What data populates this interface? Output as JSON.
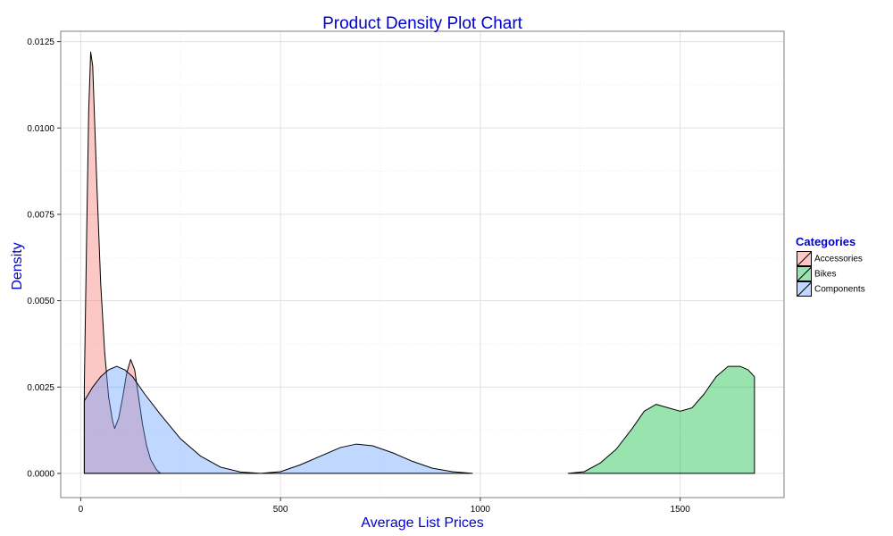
{
  "chart_data": {
    "type": "area",
    "title": "Product Density Plot Chart",
    "xlabel": "Average List Prices",
    "ylabel": "Density",
    "xlim": [
      -50,
      1760
    ],
    "ylim": [
      -0.0007,
      0.0128
    ],
    "x_ticks": [
      0,
      500,
      1000,
      1500
    ],
    "x_tick_labels": [
      "0",
      "500",
      "1000",
      "1500"
    ],
    "y_ticks": [
      0,
      0.0025,
      0.005,
      0.0075,
      0.01,
      0.0125
    ],
    "y_tick_labels": [
      "0.0000",
      "0.0025",
      "0.0050",
      "0.0075",
      "0.0100",
      "0.0125"
    ],
    "grid": true,
    "legend": {
      "title": "Categories",
      "placement": "right"
    },
    "series": [
      {
        "name": "Accessories",
        "color": "#f8766d",
        "fill_opacity": 0.4,
        "points": [
          [
            9,
            0.0025
          ],
          [
            15,
            0.007
          ],
          [
            20,
            0.0105
          ],
          [
            25,
            0.0122
          ],
          [
            30,
            0.0118
          ],
          [
            40,
            0.0085
          ],
          [
            50,
            0.0055
          ],
          [
            60,
            0.0035
          ],
          [
            70,
            0.0022
          ],
          [
            80,
            0.0015
          ],
          [
            85,
            0.0013
          ],
          [
            95,
            0.0016
          ],
          [
            105,
            0.0022
          ],
          [
            115,
            0.0029
          ],
          [
            125,
            0.0033
          ],
          [
            135,
            0.003
          ],
          [
            145,
            0.0022
          ],
          [
            155,
            0.0014
          ],
          [
            165,
            0.0008
          ],
          [
            175,
            0.0004
          ],
          [
            190,
            0.0001
          ],
          [
            200,
            0.0
          ]
        ]
      },
      {
        "name": "Bikes",
        "color": "#00ba38",
        "fill_opacity": 0.4,
        "points": [
          [
            1220,
            0.0
          ],
          [
            1260,
            5e-05
          ],
          [
            1300,
            0.0003
          ],
          [
            1340,
            0.0007
          ],
          [
            1380,
            0.0013
          ],
          [
            1410,
            0.0018
          ],
          [
            1440,
            0.002
          ],
          [
            1470,
            0.0019
          ],
          [
            1500,
            0.0018
          ],
          [
            1530,
            0.0019
          ],
          [
            1560,
            0.0023
          ],
          [
            1590,
            0.0028
          ],
          [
            1620,
            0.0031
          ],
          [
            1650,
            0.0031
          ],
          [
            1670,
            0.003
          ],
          [
            1686,
            0.0028
          ]
        ]
      },
      {
        "name": "Components",
        "color": "#619cff",
        "fill_opacity": 0.4,
        "points": [
          [
            9,
            0.0021
          ],
          [
            30,
            0.0025
          ],
          [
            50,
            0.0028
          ],
          [
            70,
            0.003
          ],
          [
            90,
            0.0031
          ],
          [
            110,
            0.003
          ],
          [
            130,
            0.0028
          ],
          [
            160,
            0.0023
          ],
          [
            200,
            0.0017
          ],
          [
            250,
            0.001
          ],
          [
            300,
            0.0005
          ],
          [
            350,
            0.00018
          ],
          [
            400,
            4e-05
          ],
          [
            450,
            0.0
          ],
          [
            500,
            5e-05
          ],
          [
            550,
            0.00025
          ],
          [
            600,
            0.0005
          ],
          [
            650,
            0.00075
          ],
          [
            690,
            0.00085
          ],
          [
            730,
            0.0008
          ],
          [
            780,
            0.0006
          ],
          [
            830,
            0.00035
          ],
          [
            880,
            0.00015
          ],
          [
            930,
            5e-05
          ],
          [
            980,
            0.0
          ]
        ]
      }
    ]
  }
}
